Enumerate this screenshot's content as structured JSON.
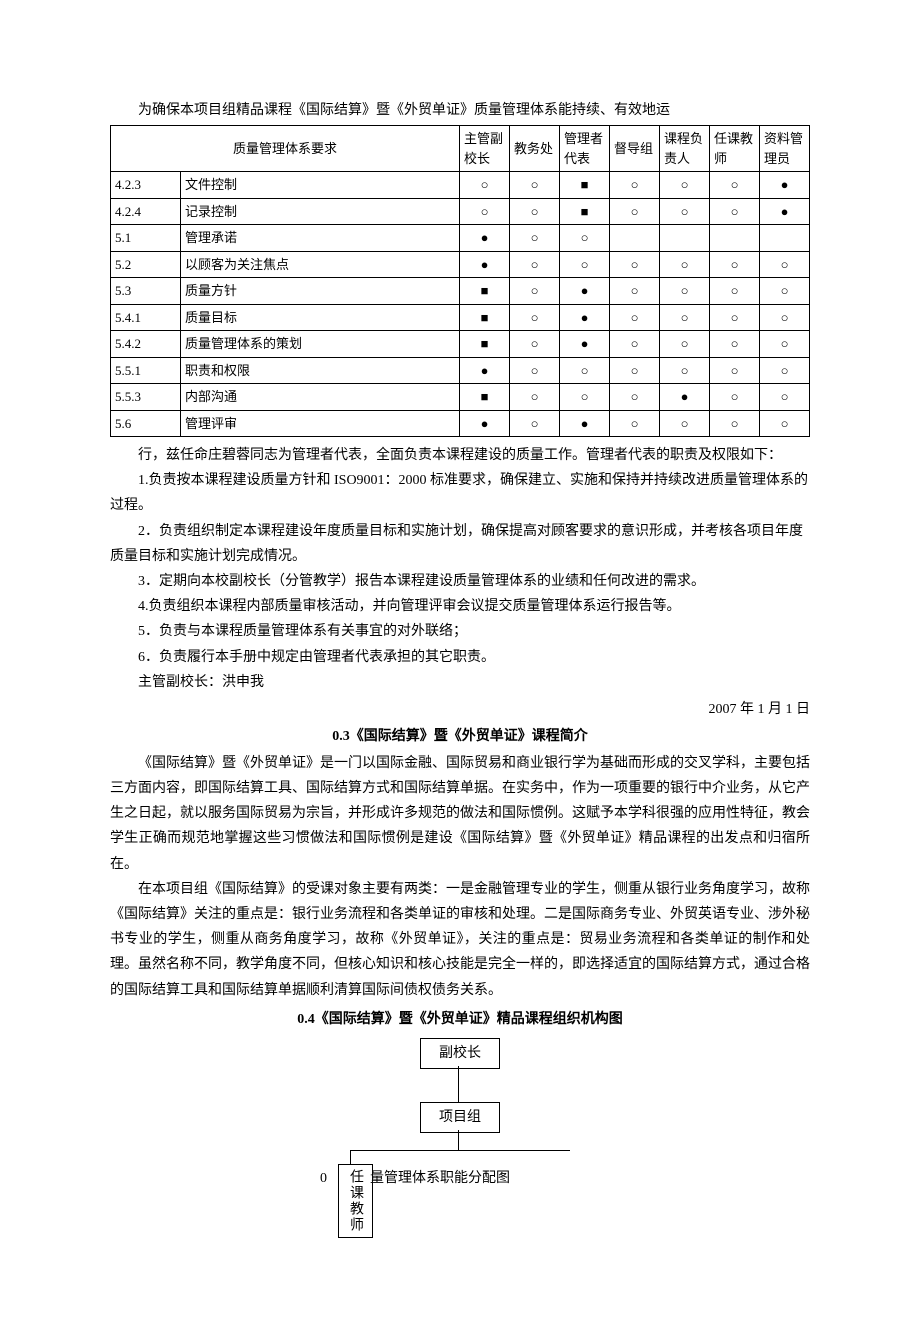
{
  "intro": "为确保本项目组精品课程《国际结算》暨《外贸单证》质量管理体系能持续、有效地运",
  "table": {
    "header_req": "质量管理体系要求",
    "columns": [
      "主管副校长",
      "教务处",
      "管理者代表",
      "督导组",
      "课程负责人",
      "任课教师",
      "资料管理员"
    ],
    "rows": [
      {
        "code": "4.2.3",
        "name": "文件控制",
        "cells": [
          "○",
          "○",
          "■",
          "○",
          "○",
          "○",
          "●"
        ]
      },
      {
        "code": "4.2.4",
        "name": "记录控制",
        "cells": [
          "○",
          "○",
          "■",
          "○",
          "○",
          "○",
          "●"
        ]
      },
      {
        "code": "5.1",
        "name": "管理承诺",
        "cells": [
          "●",
          "○",
          "○",
          "",
          "",
          "",
          ""
        ]
      },
      {
        "code": "5.2",
        "name": "以顾客为关注焦点",
        "cells": [
          "●",
          "○",
          "○",
          "○",
          "○",
          "○",
          "○"
        ]
      },
      {
        "code": "5.3",
        "name": "质量方针",
        "cells": [
          "■",
          "○",
          "●",
          "○",
          "○",
          "○",
          "○"
        ]
      },
      {
        "code": "5.4.1",
        "name": "质量目标",
        "cells": [
          "■",
          "○",
          "●",
          "○",
          "○",
          "○",
          "○"
        ]
      },
      {
        "code": "5.4.2",
        "name": "质量管理体系的策划",
        "cells": [
          "■",
          "○",
          "●",
          "○",
          "○",
          "○",
          "○"
        ]
      },
      {
        "code": "5.5.1",
        "name": "职责和权限",
        "cells": [
          "●",
          "○",
          "○",
          "○",
          "○",
          "○",
          "○"
        ]
      },
      {
        "code": "5.5.3",
        "name": "内部沟通",
        "cells": [
          "■",
          "○",
          "○",
          "○",
          "●",
          "○",
          "○"
        ]
      },
      {
        "code": "5.6",
        "name": "管理评审",
        "cells": [
          "●",
          "○",
          "●",
          "○",
          "○",
          "○",
          "○"
        ]
      }
    ]
  },
  "after_table": [
    "行，兹任命庄碧蓉同志为管理者代表，全面负责本课程建设的质量工作。管理者代表的职责及权限如下：",
    "1.负责按本课程建设质量方针和 ISO9001：2000 标准要求，确保建立、实施和保持并持续改进质量管理体系的过程。",
    "2．负责组织制定本课程建设年度质量目标和实施计划，确保提高对顾客要求的意识形成，并考核各项目年度质量目标和实施计划完成情况。",
    "3．定期向本校副校长（分管教学）报告本课程建设质量管理体系的业绩和任何改进的需求。",
    "4.负责组织本课程内部质量审核活动，并向管理评审会议提交质量管理体系运行报告等。",
    "5．负责与本课程质量管理体系有关事宜的对外联络；",
    "6．负责履行本手册中规定由管理者代表承担的其它职责。",
    "主管副校长：洪申我"
  ],
  "date": "2007 年 1 月 1 日",
  "section03_title": "0.3《国际结算》暨《外贸单证》课程简介",
  "section03_p1": "《国际结算》暨《外贸单证》是一门以国际金融、国际贸易和商业银行学为基础而形成的交叉学科，主要包括三方面内容，即国际结算工具、国际结算方式和国际结算单据。在实务中，作为一项重要的银行中介业务，从它产生之日起，就以服务国际贸易为宗旨，并形成许多规范的做法和国际惯例。这赋予本学科很强的应用性特征，教会学生正确而规范地掌握这些习惯做法和国际惯例是建设《国际结算》暨《外贸单证》精品课程的出发点和归宿所在。",
  "section03_p2": "在本项目组《国际结算》的受课对象主要有两类：一是金融管理专业的学生，侧重从银行业务角度学习，故称《国际结算》关注的重点是：银行业务流程和各类单证的审核和处理。二是国际商务专业、外贸英语专业、涉外秘书专业的学生，侧重从商务角度学习，故称《外贸单证》，关注的重点是：贸易业务流程和各类单证的制作和处理。虽然名称不同，教学角度不同，但核心知识和核心技能是完全一样的，即选择适宜的国际结算方式，通过合格的国际结算工具和国际结算单据顺利清算国际间债权债务关系。",
  "section04_title": "0.4《国际结算》暨《外贸单证》精品课程组织机构图",
  "org": {
    "top": "副校长",
    "mid": "项目组",
    "left": "任课教师",
    "left_num": "0",
    "mid_caption": "量管理体系职能分配图"
  },
  "colors": {
    "text": "#000000",
    "background": "#ffffff",
    "border": "#000000"
  }
}
